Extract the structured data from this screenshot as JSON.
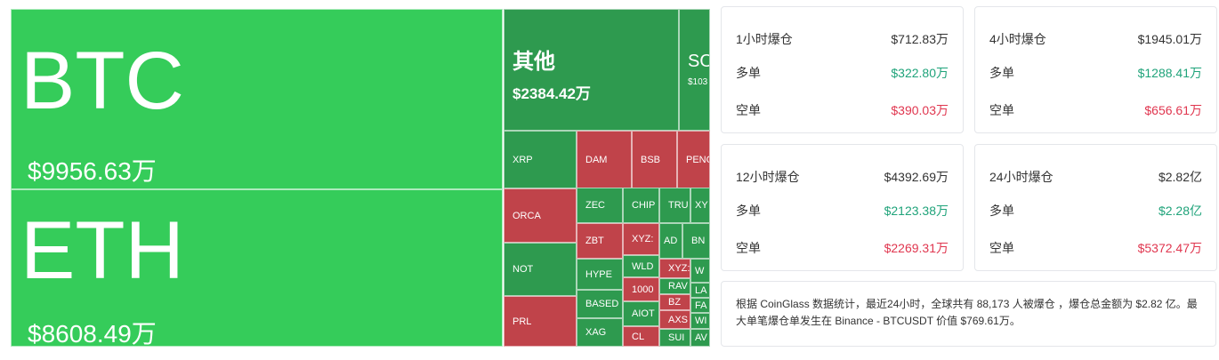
{
  "treemap": {
    "tiles": [
      {
        "label": "BTC",
        "value": "$9956.63万"
      },
      {
        "label": "ETH",
        "value": "$8608.49万"
      },
      {
        "label": "其他",
        "value": "$2384.42万"
      },
      {
        "label": "SO",
        "value": "$103"
      },
      {
        "label": "XRP"
      },
      {
        "label": "DAM"
      },
      {
        "label": "BSB"
      },
      {
        "label": "PENG"
      },
      {
        "label": "ORCA"
      },
      {
        "label": "NOT"
      },
      {
        "label": "PRL"
      },
      {
        "label": "ZEC"
      },
      {
        "label": "ZBT"
      },
      {
        "label": "HYPE"
      },
      {
        "label": "BASED"
      },
      {
        "label": "XAG"
      },
      {
        "label": "CHIP"
      },
      {
        "label": "XYZ:"
      },
      {
        "label": "WLD"
      },
      {
        "label": "1000"
      },
      {
        "label": "AIOT"
      },
      {
        "label": "CL"
      },
      {
        "label": "TRU"
      },
      {
        "label": "XY"
      },
      {
        "label": "AD"
      },
      {
        "label": "BN"
      },
      {
        "label": "XYZ:"
      },
      {
        "label": "W"
      },
      {
        "label": "RAV"
      },
      {
        "label": "LA"
      },
      {
        "label": "BZ"
      },
      {
        "label": "FA"
      },
      {
        "label": "AXS"
      },
      {
        "label": "WI"
      },
      {
        "label": "SUI"
      },
      {
        "label": "AV"
      }
    ]
  },
  "cards": [
    {
      "title": "1小时爆仓",
      "total": "$712.83万",
      "long_label": "多单",
      "long": "$322.80万",
      "short_label": "空单",
      "short": "$390.03万"
    },
    {
      "title": "4小时爆仓",
      "total": "$1945.01万",
      "long_label": "多单",
      "long": "$1288.41万",
      "short_label": "空单",
      "short": "$656.61万"
    },
    {
      "title": "12小时爆仓",
      "total": "$4392.69万",
      "long_label": "多单",
      "long": "$2123.38万",
      "short_label": "空单",
      "short": "$2269.31万"
    },
    {
      "title": "24小时爆仓",
      "total": "$2.82亿",
      "long_label": "多单",
      "long": "$2.28亿",
      "short_label": "空单",
      "short": "$5372.47万"
    }
  ],
  "note": "根据 CoinGlass 数据统计，最近24小时，全球共有 88,173 人被爆仓 ，爆仓总金额为 $2.82 亿。最大单笔爆仓单发生在 Binance - BTCUSDT 价值 $769.61万。"
}
